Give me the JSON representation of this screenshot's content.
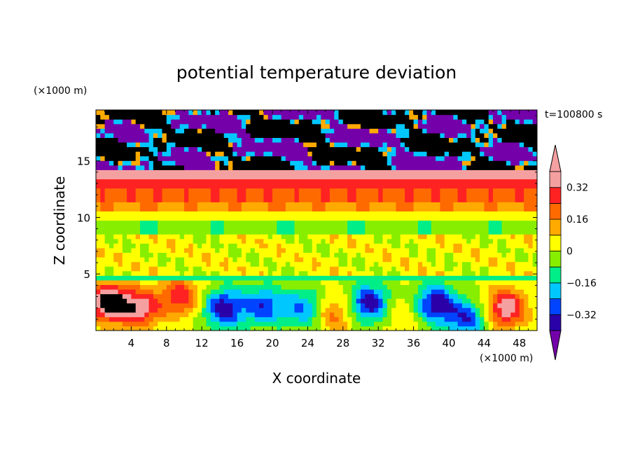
{
  "chart_data": {
    "type": "heatmap",
    "title": "potential temperature deviation",
    "xlabel": "X coordinate",
    "ylabel": "Z coordinate",
    "x_unit": "(×1000 m)",
    "y_unit": "(×1000 m)",
    "time_label": "t=100800 s",
    "xlim": [
      0,
      50
    ],
    "ylim": [
      0,
      19.5
    ],
    "x_ticks": [
      "4",
      "8",
      "12",
      "16",
      "20",
      "24",
      "28",
      "32",
      "36",
      "40",
      "44",
      "48"
    ],
    "y_ticks": [
      "5",
      "10",
      "15"
    ],
    "colorbar": {
      "levels": [
        -0.4,
        -0.32,
        -0.24,
        -0.16,
        -0.08,
        0,
        0.08,
        0.16,
        0.24,
        0.32,
        0.4
      ],
      "tick_labels": [
        "0.32",
        "0.16",
        "0",
        "−0.16",
        "−0.32"
      ],
      "tick_values": [
        0.32,
        0.16,
        0,
        -0.16,
        -0.32
      ],
      "colors": [
        "#7400aa",
        "#2a00a8",
        "#0044ff",
        "#00c8ff",
        "#00ee88",
        "#88ee00",
        "#ffff00",
        "#ffaa00",
        "#ff6a00",
        "#ff2222",
        "#f5a0a0"
      ],
      "extend": "both"
    },
    "layers": [
      {
        "z_range": [
          17.5,
          19.5
        ],
        "pattern": "mixed",
        "dominant": [
          "#f5a0a0",
          "#7400aa"
        ]
      },
      {
        "z_range": [
          14.5,
          17.5
        ],
        "pattern": "mixed",
        "dominant": [
          "#f5a0a0",
          "#7400aa"
        ]
      },
      {
        "z_range": [
          13.5,
          14.5
        ],
        "value_approx": 0.36
      },
      {
        "z_range": [
          12.5,
          13.5
        ],
        "value_approx": 0.3
      },
      {
        "z_range": [
          11.5,
          12.5
        ],
        "value_approx": 0.22
      },
      {
        "z_range": [
          10.5,
          11.5
        ],
        "value_approx": 0.15
      },
      {
        "z_range": [
          9.5,
          10.5
        ],
        "value_approx": 0.06
      },
      {
        "z_range": [
          8.5,
          9.5
        ],
        "value_approx": -0.06
      },
      {
        "z_range": [
          5,
          8.5
        ],
        "value_approx": 0.02
      },
      {
        "z_range": [
          4.5,
          5
        ],
        "value_approx": -0.12
      },
      {
        "z_range": [
          0,
          4.5
        ],
        "pattern": "convective cells",
        "dominant": [
          "#7400aa",
          "#00ee88",
          "#ff6a00"
        ]
      }
    ]
  }
}
